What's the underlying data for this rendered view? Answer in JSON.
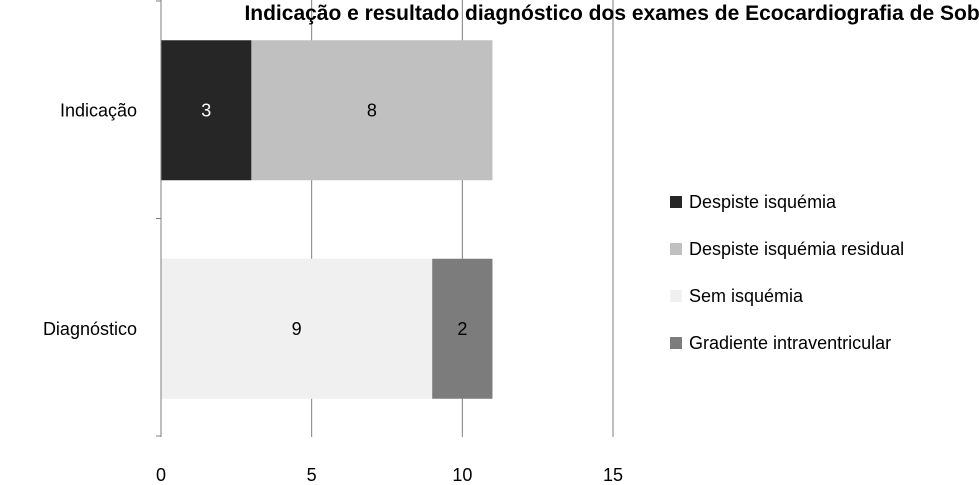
{
  "chart_data": {
    "type": "bar",
    "orientation": "horizontal",
    "stacked": true,
    "title": "Indicação e resultado diagnóstico dos exames de Ecocardiografia de Sobrecarga",
    "categories": [
      "Indicação",
      "Diagnóstico"
    ],
    "series": [
      {
        "name": "Despiste isquémia",
        "values": [
          3,
          0
        ],
        "color": "#262626"
      },
      {
        "name": "Despiste isquémia residual",
        "values": [
          8,
          0
        ],
        "color": "#c0c0c0"
      },
      {
        "name": "Sem isquémia",
        "values": [
          0,
          9
        ],
        "color": "#f0f0f0"
      },
      {
        "name": "Gradiente intraventricular",
        "values": [
          0,
          2
        ],
        "color": "#7c7c7c"
      }
    ],
    "data_labels": [
      {
        "category": "Indicação",
        "series": "Despiste isquémia",
        "text": "3"
      },
      {
        "category": "Indicação",
        "series": "Despiste isquémia residual",
        "text": "8"
      },
      {
        "category": "Diagnóstico",
        "series": "Sem isquémia",
        "text": "9"
      },
      {
        "category": "Diagnóstico",
        "series": "Gradiente intraventricular",
        "text": "2"
      }
    ],
    "label_colors": {
      "Despiste isquémia": "#ffffff"
    },
    "xlim": [
      0,
      15
    ],
    "xticks": [
      "0",
      "5",
      "10",
      "15"
    ],
    "xlabel": "",
    "ylabel": "",
    "grid": true,
    "legend": "right",
    "axis_color": "#7f7f7f"
  }
}
